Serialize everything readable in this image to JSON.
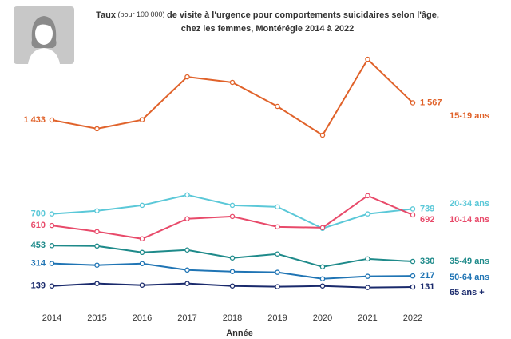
{
  "chart_data": {
    "type": "line",
    "title_parts": [
      "Taux",
      " (pour 100 000) ",
      "de visite à l'urgence pour comportements suicidaires selon l'âge,"
    ],
    "subtitle": "chez les femmes, Montérégie 2014 à 2022",
    "x_label": "Année",
    "categories": [
      "2014",
      "2015",
      "2016",
      "2017",
      "2018",
      "2019",
      "2020",
      "2021",
      "2022"
    ],
    "ylim": [
      0,
      2000
    ],
    "series": [
      {
        "name": "15-19 ans",
        "color": "#e0622a",
        "values": [
          1433,
          1365,
          1435,
          1769,
          1726,
          1539,
          1315,
          1906,
          1567
        ],
        "value_labels": [
          "1 433",
          null,
          null,
          null,
          null,
          null,
          null,
          null,
          "1 567"
        ]
      },
      {
        "name": "20-34 ans",
        "color": "#5bc8d8",
        "values": [
          700,
          724,
          767,
          848,
          767,
          755,
          587,
          700,
          739
        ],
        "value_labels": [
          "700",
          null,
          null,
          null,
          null,
          null,
          null,
          null,
          "739"
        ]
      },
      {
        "name": "10-14 ans",
        "color": "#e84a6a",
        "values": [
          610,
          562,
          506,
          662,
          680,
          599,
          593,
          842,
          692
        ],
        "value_labels": [
          "610",
          null,
          null,
          null,
          null,
          null,
          null,
          null,
          "692"
        ]
      },
      {
        "name": "35-49 ans",
        "color": "#1e8a8a",
        "values": [
          453,
          450,
          400,
          419,
          357,
          388,
          288,
          350,
          330
        ],
        "value_labels": [
          "453",
          null,
          null,
          null,
          null,
          null,
          null,
          null,
          "330"
        ]
      },
      {
        "name": "50-64 ans",
        "color": "#1f74b4",
        "values": [
          314,
          301,
          313,
          263,
          251,
          245,
          195,
          214,
          217
        ],
        "value_labels": [
          "314",
          null,
          null,
          null,
          null,
          null,
          null,
          null,
          "217"
        ]
      },
      {
        "name": "65 ans +",
        "color": "#1a2a6c",
        "values": [
          139,
          158,
          145,
          158,
          139,
          133,
          139,
          127,
          131
        ],
        "value_labels": [
          "139",
          null,
          null,
          null,
          null,
          null,
          null,
          null,
          "131"
        ]
      }
    ]
  }
}
